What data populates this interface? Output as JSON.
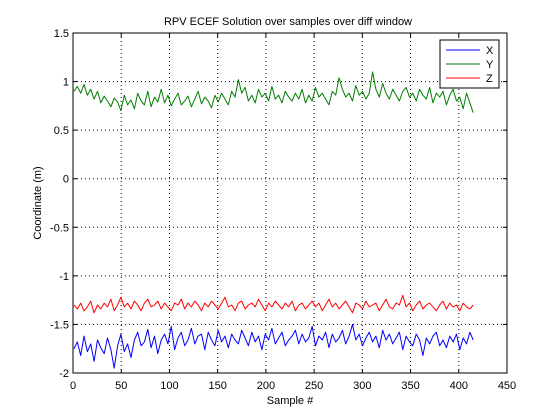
{
  "chart_data": {
    "type": "line",
    "title": "RPV ECEF Solution over samples over diff window",
    "xlabel": "Sample #",
    "ylabel": "Coordinate (m)",
    "xlim": [
      0,
      450
    ],
    "ylim": [
      -2,
      1.5
    ],
    "xticks": [
      0,
      50,
      100,
      150,
      200,
      250,
      300,
      350,
      400,
      450
    ],
    "yticks": [
      -2,
      -1.5,
      -1,
      -0.5,
      0,
      0.5,
      1,
      1.5
    ],
    "xtick_labels": [
      "0",
      "50",
      "100",
      "150",
      "200",
      "250",
      "300",
      "350",
      "400",
      "450"
    ],
    "ytick_labels": [
      "-2",
      "-1.5",
      "-1",
      "-0.5",
      "0",
      "0.5",
      "1",
      "1.5"
    ],
    "grid": true,
    "grid_style": "dotted",
    "legend_position": "top-right",
    "x_range": [
      1,
      415
    ],
    "series": [
      {
        "name": "X",
        "color": "#0000ff",
        "values": [
          -1.75,
          -1.68,
          -1.82,
          -1.62,
          -1.78,
          -1.7,
          -1.88,
          -1.66,
          -1.74,
          -1.8,
          -1.64,
          -1.76,
          -1.95,
          -1.72,
          -1.6,
          -1.78,
          -1.7,
          -1.84,
          -1.66,
          -1.58,
          -1.72,
          -1.68,
          -1.55,
          -1.74,
          -1.62,
          -1.8,
          -1.66,
          -1.6,
          -1.7,
          -1.52,
          -1.76,
          -1.64,
          -1.58,
          -1.72,
          -1.66,
          -1.54,
          -1.7,
          -1.62,
          -1.6,
          -1.76,
          -1.58,
          -1.66,
          -1.72,
          -1.56,
          -1.68,
          -1.62,
          -1.74,
          -1.6,
          -1.66,
          -1.7,
          -1.56,
          -1.64,
          -1.72,
          -1.58,
          -1.68,
          -1.62,
          -1.76,
          -1.6,
          -1.66,
          -1.54,
          -1.7,
          -1.64,
          -1.58,
          -1.72,
          -1.66,
          -1.62,
          -1.56,
          -1.7,
          -1.6,
          -1.68,
          -1.64,
          -1.52,
          -1.72,
          -1.62,
          -1.66,
          -1.58,
          -1.74,
          -1.6,
          -1.68,
          -1.64,
          -1.56,
          -1.7,
          -1.62,
          -1.5,
          -1.66,
          -1.6,
          -1.72,
          -1.64,
          -1.58,
          -1.68,
          -1.62,
          -1.74,
          -1.56,
          -1.66,
          -1.6,
          -1.7,
          -1.64,
          -1.58,
          -1.76,
          -1.62,
          -1.68,
          -1.72,
          -1.6,
          -1.66,
          -1.82,
          -1.64,
          -1.7,
          -1.62,
          -1.58,
          -1.72,
          -1.66,
          -1.74,
          -1.62,
          -1.68,
          -1.6,
          -1.76,
          -1.64,
          -1.7,
          -1.58,
          -1.66
        ],
        "x_start": 1,
        "x_end": 415
      },
      {
        "name": "Y",
        "color": "#007f00",
        "values": [
          0.9,
          0.95,
          0.88,
          0.97,
          0.86,
          0.92,
          0.82,
          0.9,
          0.78,
          0.85,
          0.8,
          0.74,
          0.83,
          0.79,
          0.7,
          0.86,
          0.76,
          0.81,
          0.72,
          0.88,
          0.8,
          0.76,
          0.9,
          0.74,
          0.84,
          0.79,
          0.92,
          0.78,
          0.86,
          0.75,
          0.82,
          0.88,
          0.76,
          0.8,
          0.85,
          0.74,
          0.82,
          0.9,
          0.77,
          0.84,
          0.8,
          0.73,
          0.86,
          0.79,
          0.88,
          0.82,
          0.76,
          0.9,
          0.84,
          1.02,
          0.88,
          0.94,
          0.8,
          0.86,
          0.78,
          0.92,
          0.84,
          0.88,
          0.8,
          0.95,
          0.82,
          0.86,
          0.78,
          0.9,
          0.84,
          0.8,
          0.88,
          0.82,
          0.92,
          0.78,
          0.86,
          0.8,
          0.94,
          0.84,
          0.88,
          0.82,
          0.76,
          0.9,
          0.86,
          1.04,
          0.92,
          0.84,
          0.88,
          0.8,
          0.96,
          0.86,
          0.9,
          0.82,
          0.88,
          1.1,
          0.92,
          0.84,
          0.98,
          0.88,
          0.82,
          0.92,
          0.86,
          0.8,
          0.9,
          0.94,
          0.84,
          0.88,
          0.8,
          0.92,
          0.86,
          0.82,
          0.94,
          0.78,
          0.88,
          0.84,
          0.9,
          0.76,
          0.86,
          0.92,
          0.8,
          0.84,
          0.72,
          0.88,
          0.78,
          0.68
        ],
        "x_start": 1,
        "x_end": 415
      },
      {
        "name": "Z",
        "color": "#ff0000",
        "values": [
          -1.3,
          -1.34,
          -1.28,
          -1.36,
          -1.32,
          -1.26,
          -1.38,
          -1.3,
          -1.34,
          -1.28,
          -1.32,
          -1.24,
          -1.36,
          -1.3,
          -1.22,
          -1.32,
          -1.28,
          -1.34,
          -1.26,
          -1.3,
          -1.36,
          -1.28,
          -1.24,
          -1.32,
          -1.3,
          -1.26,
          -1.34,
          -1.28,
          -1.32,
          -1.36,
          -1.28,
          -1.3,
          -1.24,
          -1.34,
          -1.28,
          -1.32,
          -1.26,
          -1.3,
          -1.36,
          -1.28,
          -1.32,
          -1.26,
          -1.3,
          -1.34,
          -1.28,
          -1.22,
          -1.32,
          -1.3,
          -1.36,
          -1.28,
          -1.26,
          -1.34,
          -1.3,
          -1.28,
          -1.32,
          -1.24,
          -1.3,
          -1.36,
          -1.28,
          -1.32,
          -1.26,
          -1.3,
          -1.34,
          -1.28,
          -1.32,
          -1.26,
          -1.36,
          -1.3,
          -1.28,
          -1.34,
          -1.3,
          -1.26,
          -1.32,
          -1.28,
          -1.36,
          -1.3,
          -1.24,
          -1.32,
          -1.28,
          -1.34,
          -1.3,
          -1.26,
          -1.32,
          -1.38,
          -1.28,
          -1.3,
          -1.34,
          -1.26,
          -1.32,
          -1.3,
          -1.28,
          -1.36,
          -1.3,
          -1.24,
          -1.32,
          -1.34,
          -1.28,
          -1.3,
          -1.2,
          -1.32,
          -1.28,
          -1.36,
          -1.3,
          -1.26,
          -1.34,
          -1.3,
          -1.28,
          -1.32,
          -1.36,
          -1.3,
          -1.26,
          -1.34,
          -1.28,
          -1.32,
          -1.3,
          -1.36,
          -1.28,
          -1.32,
          -1.34,
          -1.3
        ],
        "x_start": 1,
        "x_end": 415
      }
    ]
  }
}
